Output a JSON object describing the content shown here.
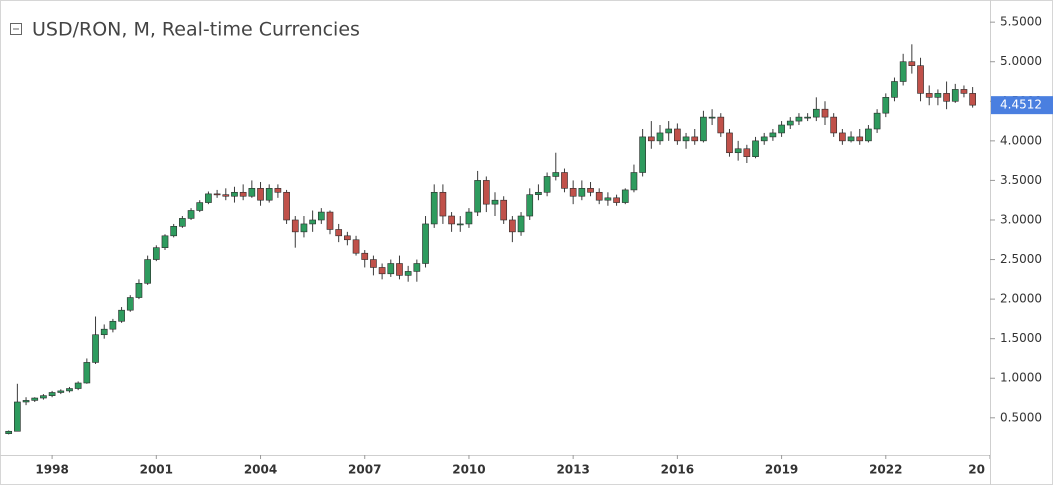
{
  "chart_data": {
    "type": "candlestick",
    "title": "USD/RON, M, Real-time Currencies",
    "up_color": "#2e9b5e",
    "down_color": "#c0514a",
    "current_price_color": "#4a7fe0",
    "xlim": [
      1996.5,
      2025
    ],
    "xticks": [
      1998,
      2001,
      2004,
      2007,
      2010,
      2013,
      2016,
      2019,
      2022,
      {
        "value": 2025,
        "label": "20"
      }
    ],
    "ylim": [
      0.03,
      5.78
    ],
    "yticks": [
      {
        "value": 0.5,
        "label": "0.5000"
      },
      {
        "value": 1,
        "label": "1.0000"
      },
      {
        "value": 1.5,
        "label": "1.5000"
      },
      {
        "value": 2,
        "label": "2.0000"
      },
      {
        "value": 2.5,
        "label": "2.5000"
      },
      {
        "value": 3,
        "label": "3.0000"
      },
      {
        "value": 3.5,
        "label": "3.5000"
      },
      {
        "value": 4,
        "label": "4.0000"
      },
      {
        "value": 4.5,
        "label": "4.5000"
      },
      {
        "value": 5,
        "label": "5.0000"
      },
      {
        "value": 5.5,
        "label": "5.5000"
      }
    ],
    "x": [
      1996.75,
      1997,
      1997.25,
      1997.5,
      1997.75,
      1998,
      1998.25,
      1998.5,
      1998.75,
      1999,
      1999.25,
      1999.5,
      1999.75,
      2000,
      2000.25,
      2000.5,
      2000.75,
      2001,
      2001.25,
      2001.5,
      2001.75,
      2002,
      2002.25,
      2002.5,
      2002.75,
      2003,
      2003.25,
      2003.5,
      2003.75,
      2004,
      2004.25,
      2004.5,
      2004.75,
      2005,
      2005.25,
      2005.5,
      2005.75,
      2006,
      2006.25,
      2006.5,
      2006.75,
      2007,
      2007.25,
      2007.5,
      2007.75,
      2008,
      2008.25,
      2008.5,
      2008.75,
      2009,
      2009.25,
      2009.5,
      2009.75,
      2010,
      2010.25,
      2010.5,
      2010.75,
      2011,
      2011.25,
      2011.5,
      2011.75,
      2012,
      2012.25,
      2012.5,
      2012.75,
      2013,
      2013.25,
      2013.5,
      2013.75,
      2014,
      2014.25,
      2014.5,
      2014.75,
      2015,
      2015.25,
      2015.5,
      2015.75,
      2016,
      2016.25,
      2016.5,
      2016.75,
      2017,
      2017.25,
      2017.5,
      2017.75,
      2018,
      2018.25,
      2018.5,
      2018.75,
      2019,
      2019.25,
      2019.5,
      2019.75,
      2020,
      2020.25,
      2020.5,
      2020.75,
      2021,
      2021.25,
      2021.5,
      2021.75,
      2022,
      2022.25,
      2022.5,
      2022.75,
      2023,
      2023.25,
      2023.5,
      2023.75,
      2024,
      2024.25,
      2024.5
    ],
    "open": [
      0.3,
      0.33,
      0.7,
      0.72,
      0.75,
      0.78,
      0.82,
      0.84,
      0.87,
      0.94,
      1.2,
      1.55,
      1.62,
      1.72,
      1.86,
      2.02,
      2.2,
      2.5,
      2.65,
      2.8,
      2.92,
      3.02,
      3.12,
      3.22,
      3.33,
      3.32,
      3.3,
      3.35,
      3.3,
      3.4,
      3.25,
      3.4,
      3.35,
      3.0,
      2.85,
      2.95,
      3.0,
      3.1,
      2.88,
      2.8,
      2.75,
      2.58,
      2.5,
      2.4,
      2.32,
      2.45,
      2.3,
      2.35,
      2.45,
      2.95,
      3.35,
      3.05,
      2.95,
      2.95,
      3.1,
      3.5,
      3.2,
      3.25,
      3.0,
      2.85,
      3.05,
      3.32,
      3.35,
      3.55,
      3.6,
      3.4,
      3.3,
      3.4,
      3.35,
      3.25,
      3.28,
      3.22,
      3.38,
      3.6,
      4.05,
      4.0,
      4.1,
      4.15,
      4.0,
      4.05,
      4.0,
      4.3,
      4.3,
      4.1,
      3.85,
      3.9,
      3.8,
      4.0,
      4.05,
      4.1,
      4.2,
      4.25,
      4.3,
      4.3,
      4.4,
      4.3,
      4.1,
      4.0,
      4.05,
      4.0,
      4.15,
      4.35,
      4.55,
      4.75,
      5.0,
      4.95,
      4.6,
      4.55,
      4.6,
      4.5,
      4.65,
      4.6
    ],
    "high": [
      0.34,
      0.93,
      0.76,
      0.76,
      0.8,
      0.84,
      0.86,
      0.89,
      0.96,
      1.25,
      1.78,
      1.68,
      1.75,
      1.9,
      2.05,
      2.25,
      2.55,
      2.68,
      2.82,
      2.95,
      3.05,
      3.15,
      3.25,
      3.36,
      3.38,
      3.4,
      3.42,
      3.45,
      3.5,
      3.48,
      3.45,
      3.45,
      3.38,
      3.05,
      3.05,
      3.12,
      3.15,
      3.12,
      2.95,
      2.85,
      2.8,
      2.62,
      2.55,
      2.45,
      2.5,
      2.55,
      2.42,
      2.5,
      3.05,
      3.45,
      3.45,
      3.1,
      3.05,
      3.15,
      3.62,
      3.55,
      3.35,
      3.3,
      3.05,
      3.1,
      3.4,
      3.45,
      3.6,
      3.85,
      3.65,
      3.5,
      3.5,
      3.48,
      3.4,
      3.35,
      3.32,
      3.4,
      3.7,
      4.15,
      4.25,
      4.2,
      4.25,
      4.22,
      4.1,
      4.15,
      4.38,
      4.4,
      4.35,
      4.15,
      4.0,
      3.95,
      4.05,
      4.1,
      4.15,
      4.25,
      4.3,
      4.35,
      4.35,
      4.55,
      4.5,
      4.35,
      4.15,
      4.12,
      4.15,
      4.2,
      4.4,
      4.6,
      4.8,
      5.1,
      5.22,
      5.05,
      4.7,
      4.65,
      4.75,
      4.72,
      4.7,
      4.68
    ],
    "low": [
      0.29,
      0.33,
      0.66,
      0.7,
      0.73,
      0.76,
      0.8,
      0.82,
      0.85,
      0.93,
      1.18,
      1.5,
      1.58,
      1.7,
      1.84,
      2.0,
      2.18,
      2.48,
      2.62,
      2.78,
      2.9,
      3.0,
      3.1,
      3.2,
      3.28,
      3.25,
      3.22,
      3.25,
      3.28,
      3.18,
      3.22,
      3.28,
      2.95,
      2.65,
      2.78,
      2.85,
      2.95,
      2.82,
      2.72,
      2.68,
      2.55,
      2.4,
      2.3,
      2.25,
      2.28,
      2.25,
      2.22,
      2.22,
      2.4,
      2.9,
      2.95,
      2.85,
      2.85,
      2.9,
      3.05,
      3.1,
      3.05,
      2.95,
      2.72,
      2.8,
      3.0,
      3.25,
      3.3,
      3.5,
      3.35,
      3.2,
      3.25,
      3.3,
      3.2,
      3.18,
      3.18,
      3.2,
      3.35,
      3.55,
      3.9,
      3.95,
      4.0,
      3.95,
      3.9,
      3.95,
      3.98,
      4.2,
      4.05,
      3.8,
      3.75,
      3.72,
      3.78,
      3.95,
      4.0,
      4.05,
      4.15,
      4.2,
      4.25,
      4.25,
      4.2,
      4.05,
      3.95,
      3.98,
      3.95,
      3.98,
      4.1,
      4.3,
      4.5,
      4.7,
      4.85,
      4.5,
      4.45,
      4.45,
      4.4,
      4.48,
      4.55,
      4.42
    ],
    "close": [
      0.33,
      0.7,
      0.72,
      0.75,
      0.78,
      0.82,
      0.84,
      0.87,
      0.94,
      1.2,
      1.55,
      1.62,
      1.72,
      1.86,
      2.02,
      2.2,
      2.5,
      2.65,
      2.8,
      2.92,
      3.02,
      3.12,
      3.22,
      3.33,
      3.32,
      3.3,
      3.35,
      3.3,
      3.4,
      3.25,
      3.4,
      3.35,
      3.0,
      2.85,
      2.95,
      3.0,
      3.1,
      2.88,
      2.8,
      2.75,
      2.58,
      2.5,
      2.4,
      2.32,
      2.45,
      2.3,
      2.35,
      2.45,
      2.95,
      3.35,
      3.05,
      2.95,
      2.95,
      3.1,
      3.5,
      3.2,
      3.25,
      3.0,
      2.85,
      3.05,
      3.32,
      3.35,
      3.55,
      3.6,
      3.4,
      3.3,
      3.4,
      3.35,
      3.25,
      3.28,
      3.22,
      3.38,
      3.6,
      4.05,
      4.0,
      4.1,
      4.15,
      4.0,
      4.05,
      4.0,
      4.3,
      4.3,
      4.1,
      3.85,
      3.9,
      3.8,
      4.0,
      4.05,
      4.1,
      4.2,
      4.25,
      4.3,
      4.3,
      4.4,
      4.3,
      4.1,
      4.0,
      4.05,
      4.0,
      4.15,
      4.35,
      4.55,
      4.75,
      5.0,
      4.95,
      4.6,
      4.55,
      4.6,
      4.5,
      4.65,
      4.6,
      4.4512
    ]
  }
}
